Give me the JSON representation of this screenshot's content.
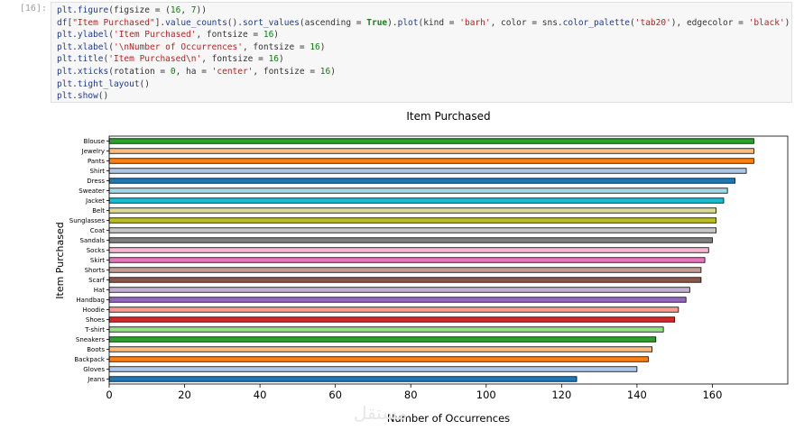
{
  "cell": {
    "prompt": "[16]:",
    "code_lines": [
      [
        [
          "var",
          "plt"
        ],
        [
          "p",
          "."
        ],
        [
          "fn",
          "figure"
        ],
        [
          "p",
          "(figsize = ("
        ],
        [
          "num",
          "16"
        ],
        [
          "p",
          ", "
        ],
        [
          "num",
          "7"
        ],
        [
          "p",
          "))"
        ]
      ],
      [
        [
          "var",
          "df"
        ],
        [
          "p",
          "["
        ],
        [
          "str",
          "\"Item Purchased\""
        ],
        [
          "p",
          "]."
        ],
        [
          "fn",
          "value_counts"
        ],
        [
          "p",
          "()."
        ],
        [
          "fn",
          "sort_values"
        ],
        [
          "p",
          "(ascending = "
        ],
        [
          "kw",
          "True"
        ],
        [
          "p",
          ")."
        ],
        [
          "fn",
          "plot"
        ],
        [
          "p",
          "(kind = "
        ],
        [
          "str",
          "'barh'"
        ],
        [
          "p",
          ", color = sns."
        ],
        [
          "fn",
          "color_palette"
        ],
        [
          "p",
          "("
        ],
        [
          "str",
          "'tab20'"
        ],
        [
          "p",
          "), edgecolor = "
        ],
        [
          "str",
          "'black'"
        ],
        [
          "p",
          ")"
        ]
      ],
      [
        [
          "var",
          "plt"
        ],
        [
          "p",
          "."
        ],
        [
          "fn",
          "ylabel"
        ],
        [
          "p",
          "("
        ],
        [
          "str",
          "'Item Purchased'"
        ],
        [
          "p",
          ", fontsize = "
        ],
        [
          "num",
          "16"
        ],
        [
          "p",
          ")"
        ]
      ],
      [
        [
          "var",
          "plt"
        ],
        [
          "p",
          "."
        ],
        [
          "fn",
          "xlabel"
        ],
        [
          "p",
          "("
        ],
        [
          "str",
          "'\\nNumber of Occurrences'"
        ],
        [
          "p",
          ", fontsize = "
        ],
        [
          "num",
          "16"
        ],
        [
          "p",
          ")"
        ]
      ],
      [
        [
          "var",
          "plt"
        ],
        [
          "p",
          "."
        ],
        [
          "fn",
          "title"
        ],
        [
          "p",
          "("
        ],
        [
          "str",
          "'Item Purchased\\n'"
        ],
        [
          "p",
          ", fontsize = "
        ],
        [
          "num",
          "16"
        ],
        [
          "p",
          ")"
        ]
      ],
      [
        [
          "var",
          "plt"
        ],
        [
          "p",
          "."
        ],
        [
          "fn",
          "xticks"
        ],
        [
          "p",
          "(rotation = "
        ],
        [
          "num",
          "0"
        ],
        [
          "p",
          ", ha = "
        ],
        [
          "str",
          "'center'"
        ],
        [
          "p",
          ", fontsize = "
        ],
        [
          "num",
          "16"
        ],
        [
          "p",
          ")"
        ]
      ],
      [
        [
          "var",
          "plt"
        ],
        [
          "p",
          "."
        ],
        [
          "fn",
          "tight_layout"
        ],
        [
          "p",
          "()"
        ]
      ],
      [
        [
          "var",
          "plt"
        ],
        [
          "p",
          "."
        ],
        [
          "fn",
          "show"
        ],
        [
          "p",
          "()"
        ]
      ]
    ]
  },
  "watermark": "مستقل",
  "chart_data": {
    "type": "bar",
    "orientation": "horizontal",
    "title": "Item Purchased",
    "xlabel": "Number of Occurrences",
    "ylabel": "Item Purchased",
    "xlim": [
      0,
      180
    ],
    "xticks": [
      0,
      20,
      40,
      60,
      80,
      100,
      120,
      140,
      160
    ],
    "grid": false,
    "categories": [
      "Jeans",
      "Gloves",
      "Backpack",
      "Boots",
      "Sneakers",
      "T-shirt",
      "Shoes",
      "Hoodie",
      "Handbag",
      "Hat",
      "Scarf",
      "Shorts",
      "Skirt",
      "Socks",
      "Sandals",
      "Coat",
      "Sunglasses",
      "Belt",
      "Jacket",
      "Sweater",
      "Dress",
      "Shirt",
      "Pants",
      "Jewelry",
      "Blouse"
    ],
    "values": [
      124,
      140,
      143,
      144,
      145,
      147,
      150,
      151,
      153,
      154,
      157,
      157,
      158,
      159,
      160,
      161,
      161,
      161,
      163,
      164,
      166,
      169,
      171,
      171,
      171
    ],
    "colors": [
      "#1f77b4",
      "#aec7e8",
      "#ff7f0e",
      "#ffbb78",
      "#2ca02c",
      "#98df8a",
      "#d62728",
      "#ff9896",
      "#9467bd",
      "#c5b0d5",
      "#8c564b",
      "#c49c94",
      "#e377c2",
      "#f7b6d2",
      "#7f7f7f",
      "#c7c7c7",
      "#bcbd22",
      "#dbdb8d",
      "#17becf",
      "#9edae5",
      "#1f77b4",
      "#aec7e8",
      "#ff7f0e",
      "#ffbb78",
      "#2ca02c"
    ],
    "edgecolor": "#000000"
  }
}
